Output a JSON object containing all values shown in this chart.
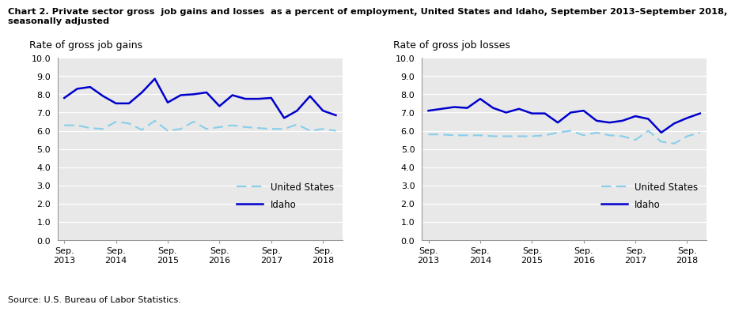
{
  "title_line1": "Chart 2. Private sector gross  job gains and losses  as a percent of employment, United States and Idaho, September 2013–September 2018,",
  "title_line2": "seasonally adjusted",
  "source": "Source: U.S. Bureau of Labor Statistics.",
  "left_ylabel": "Rate of gross job gains",
  "right_ylabel": "Rate of gross job losses",
  "xtick_labels": [
    "Sep.\n2013",
    "Sep.\n2014",
    "Sep.\n2015",
    "Sep.\n2016",
    "Sep.\n2017",
    "Sep.\n2018"
  ],
  "ylim": [
    0.0,
    10.0
  ],
  "yticks": [
    0.0,
    1.0,
    2.0,
    3.0,
    4.0,
    5.0,
    6.0,
    7.0,
    8.0,
    9.0,
    10.0
  ],
  "gains_idaho": [
    7.8,
    8.3,
    8.4,
    7.9,
    7.5,
    7.5,
    8.1,
    8.85,
    7.55,
    7.95,
    8.0,
    8.1,
    7.35,
    7.95,
    7.75,
    7.75,
    7.8,
    6.7,
    7.1,
    7.9,
    7.1,
    6.85
  ],
  "gains_us": [
    6.3,
    6.3,
    6.15,
    6.1,
    6.5,
    6.4,
    6.05,
    6.55,
    6.0,
    6.1,
    6.5,
    6.1,
    6.2,
    6.3,
    6.2,
    6.15,
    6.1,
    6.1,
    6.35,
    6.0,
    6.1,
    6.0
  ],
  "losses_idaho": [
    7.1,
    7.2,
    7.3,
    7.25,
    7.75,
    7.25,
    7.0,
    7.2,
    6.95,
    6.95,
    6.45,
    7.0,
    7.1,
    6.55,
    6.45,
    6.55,
    6.8,
    6.65,
    5.9,
    6.4,
    6.7,
    6.95
  ],
  "losses_us": [
    5.8,
    5.8,
    5.75,
    5.75,
    5.75,
    5.7,
    5.7,
    5.7,
    5.7,
    5.75,
    5.9,
    6.0,
    5.75,
    5.9,
    5.75,
    5.7,
    5.5,
    6.0,
    5.4,
    5.3,
    5.7,
    5.9
  ],
  "idaho_color": "#0000CD",
  "us_color": "#87CEEB",
  "legend_us": "United States",
  "legend_idaho": "Idaho",
  "bg_color": "#E8E8E8",
  "grid_color": "#FFFFFF"
}
